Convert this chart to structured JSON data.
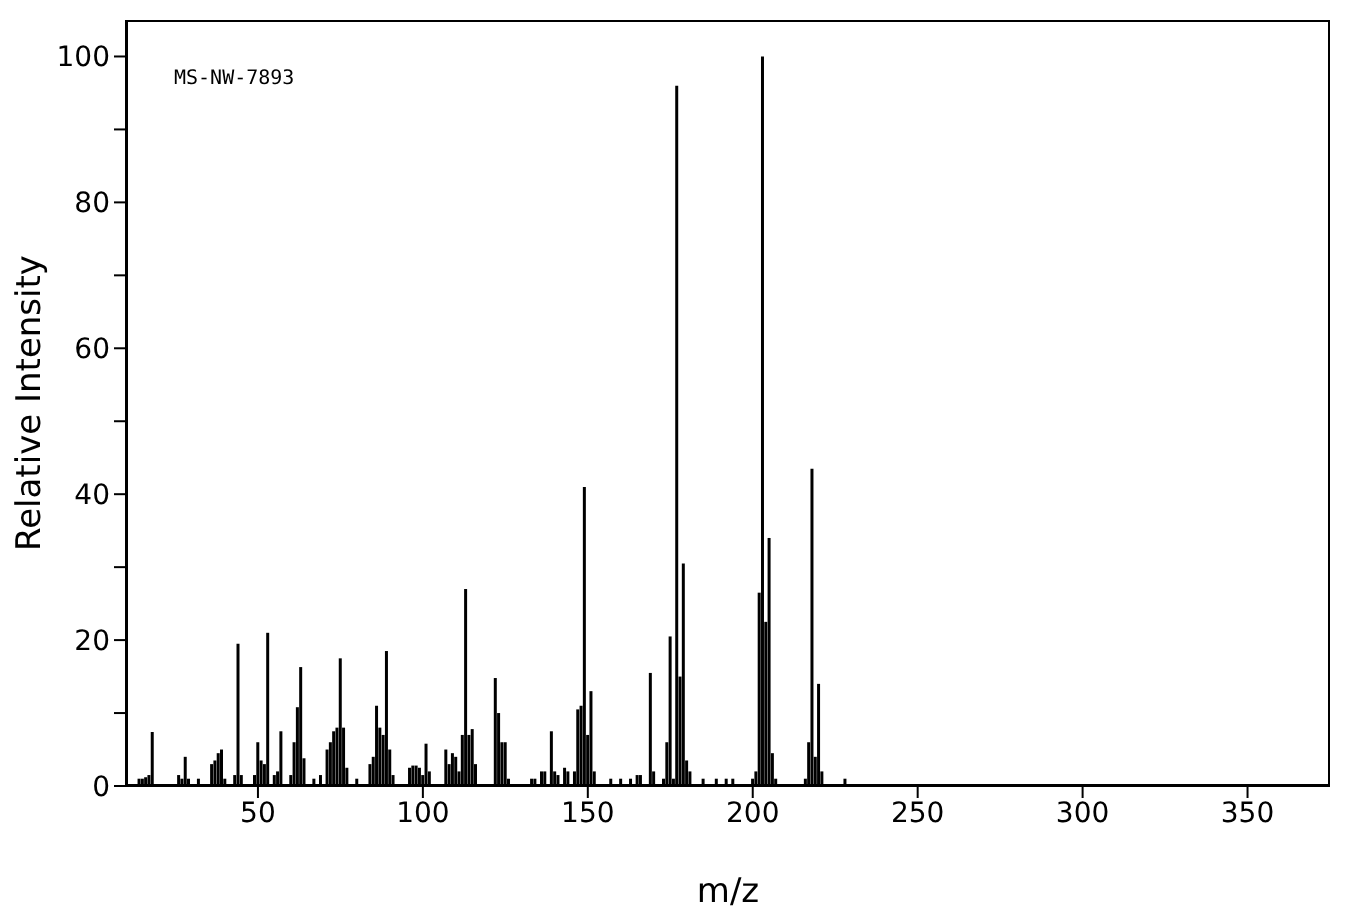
{
  "chart_data": {
    "type": "bar",
    "xlabel": "m/z",
    "ylabel": "Relative Intensity",
    "annotations": [
      "MS-NW-7893"
    ],
    "x": [
      14,
      15,
      16,
      17,
      18,
      26,
      27,
      28,
      29,
      32,
      36,
      37,
      38,
      39,
      40,
      43,
      44,
      45,
      49,
      50,
      51,
      52,
      53,
      55,
      56,
      57,
      60,
      61,
      62,
      63,
      64,
      67,
      69,
      71,
      72,
      73,
      74,
      75,
      76,
      77,
      80,
      84,
      85,
      86,
      87,
      88,
      89,
      90,
      91,
      96,
      97,
      98,
      99,
      100,
      101,
      102,
      107,
      108,
      109,
      110,
      111,
      112,
      113,
      114,
      115,
      116,
      122,
      123,
      124,
      125,
      126,
      133,
      134,
      136,
      137,
      139,
      140,
      141,
      143,
      144,
      146,
      147,
      148,
      149,
      150,
      151,
      152,
      157,
      160,
      163,
      165,
      166,
      169,
      170,
      173,
      174,
      175,
      176,
      177,
      178,
      179,
      180,
      181,
      185,
      189,
      192,
      194,
      200,
      201,
      202,
      203,
      204,
      205,
      206,
      207,
      216,
      217,
      218,
      219,
      220,
      221,
      228
    ],
    "series": [
      {
        "color": "#000000",
        "values": [
          1,
          1,
          1.2,
          1.5,
          7.4,
          1.5,
          1,
          4,
          1,
          1,
          3,
          3.5,
          4.5,
          5,
          1,
          1.5,
          19.5,
          1.5,
          1.5,
          6,
          3.5,
          3,
          21,
          1.5,
          2,
          7.5,
          1.5,
          6,
          10.8,
          16.3,
          3.8,
          1,
          1.5,
          5,
          6,
          7.5,
          8,
          17.5,
          8,
          2.5,
          1,
          3,
          4,
          11,
          8,
          7,
          18.5,
          5,
          1.5,
          2.5,
          2.8,
          2.8,
          2.5,
          1.5,
          5.8,
          2,
          5,
          3,
          4.5,
          4,
          2,
          7,
          27,
          7,
          7.8,
          3,
          14.8,
          10,
          6,
          6,
          1,
          1,
          1,
          2,
          2,
          7.5,
          2,
          1.5,
          2.5,
          2,
          2,
          10.5,
          11,
          41,
          7,
          13,
          2,
          1,
          1,
          1,
          1.5,
          1.5,
          15.5,
          2,
          1,
          6,
          20.5,
          1,
          96,
          15,
          30.5,
          3.5,
          2,
          1,
          1,
          1,
          1,
          1,
          2,
          26.5,
          100,
          22.5,
          34,
          4.5,
          1,
          1,
          6,
          43.5,
          4,
          14,
          2,
          1
        ]
      }
    ],
    "xlim": [
      10,
      375
    ],
    "xticks": [
      50,
      100,
      150,
      200,
      250,
      300,
      350
    ],
    "ylim": [
      0,
      105
    ],
    "yticks": [
      0,
      {
        "value": 10,
        "label": null
      },
      20,
      {
        "value": 30,
        "label": null
      },
      40,
      {
        "value": 50,
        "label": null
      },
      60,
      {
        "value": 70,
        "label": null
      },
      80,
      {
        "value": 90,
        "label": null
      },
      100
    ],
    "grid": false,
    "legend": false
  }
}
